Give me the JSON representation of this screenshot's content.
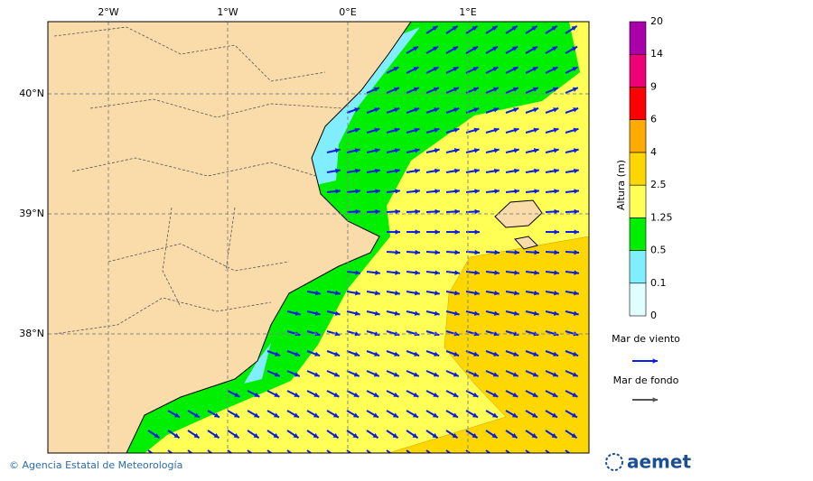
{
  "map": {
    "lon_labels": [
      "2°W",
      "1°W",
      "0°E",
      "1°E"
    ],
    "lat_labels": [
      "40°N",
      "39°N",
      "38°N"
    ],
    "colorbar": {
      "title": "Altura (m)",
      "levels": [
        0,
        0.1,
        0.5,
        1.25,
        2.5,
        4,
        6,
        9,
        14,
        20
      ],
      "colors": [
        "#e0ffff",
        "#80eeff",
        "#00ee00",
        "#ffff55",
        "#ffd700",
        "#ffaa00",
        "#ff0000",
        "#ee0077",
        "#aa00aa"
      ]
    },
    "legend": [
      {
        "label": "Mar de viento",
        "color": "#0a1ee6"
      },
      {
        "label": "Mar de fondo",
        "color": "#555555"
      }
    ],
    "credit": "© Agencia Estatal de Meteorología",
    "logo": "aemet"
  }
}
